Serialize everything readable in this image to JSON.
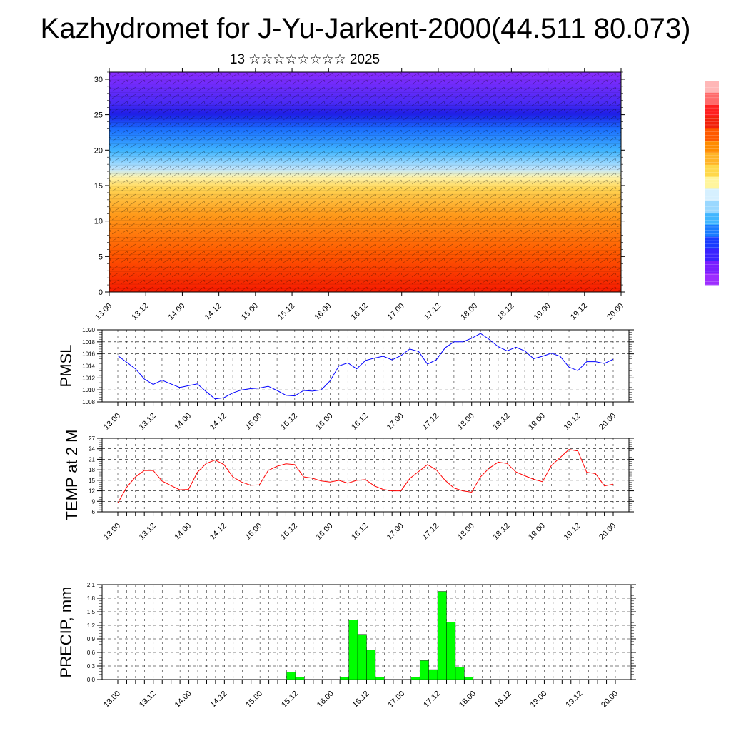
{
  "title": "Kazhydromet for J-Yu-Jarkent-2000(44.511 80.073)",
  "subtitle": "13 ☆☆☆☆☆☆☆☆ 2025",
  "x_tick_labels": [
    "13.00",
    "13.12",
    "14.00",
    "14.12",
    "15.00",
    "15.12",
    "16.00",
    "16.12",
    "17.00",
    "17.12",
    "18.00",
    "18.12",
    "19.00",
    "19.12",
    "20.00"
  ],
  "colors": {
    "pmsl_line": "#0000ff",
    "temp_line": "#ff0000",
    "precip_bar": "#00ff00",
    "colorbar": [
      "#ffb7b7",
      "#ff6b6b",
      "#ff1f1f",
      "#f2210a",
      "#ff5a00",
      "#ff8c00",
      "#ffb428",
      "#ffd84a",
      "#fff59d",
      "#d6f0ff",
      "#9ad8ff",
      "#41b6ff",
      "#1a7cff",
      "#1a3cff",
      "#3a22ff",
      "#7a1fff",
      "#9d2cff"
    ]
  },
  "chart_data": [
    {
      "type": "heatmap",
      "title": "",
      "xlabel": "",
      "ylabel": "",
      "x_tick_labels": [
        "13.00",
        "13.12",
        "14.00",
        "14.12",
        "15.00",
        "15.12",
        "16.00",
        "16.12",
        "17.00",
        "17.12",
        "18.00",
        "18.12",
        "19.00",
        "19.12",
        "20.00"
      ],
      "y_ticks": [
        0,
        5,
        10,
        15,
        20,
        25,
        30
      ],
      "ylim": [
        0,
        31
      ],
      "layers_bottom_to_top": [
        "red",
        "orange",
        "yellow",
        "light-blue",
        "blue",
        "purple"
      ],
      "overlay": "wind barbs"
    },
    {
      "type": "line",
      "ylabel": "PMSL",
      "ylim": [
        1008,
        1020
      ],
      "y_ticks": [
        1008,
        1010,
        1012,
        1014,
        1016,
        1018,
        1020
      ],
      "x_tick_labels": [
        "13.00",
        "13.12",
        "14.00",
        "14.12",
        "15.00",
        "15.12",
        "16.00",
        "16.12",
        "17.00",
        "17.12",
        "18.00",
        "18.12",
        "19.00",
        "19.12",
        "20.00"
      ],
      "x_step_hours": 3,
      "series": [
        {
          "values": [
            1015.7,
            1014.6,
            1013.5,
            1011.8,
            1010.9,
            1011.6,
            1011.0,
            1010.4,
            1010.7,
            1011.0,
            1009.7,
            1008.5,
            1008.7,
            1009.5,
            1010.0,
            1010.2,
            1010.3,
            1010.6,
            1009.9,
            1009.1,
            1009.0,
            1009.9,
            1009.8,
            1010.0,
            1011.5,
            1014.0,
            1014.5,
            1013.5,
            1014.9,
            1015.3,
            1015.6,
            1015.0,
            1015.7,
            1016.8,
            1016.4,
            1014.3,
            1015.0,
            1017.0,
            1018.0,
            1018.0,
            1018.6,
            1019.4,
            1018.4,
            1017.2,
            1016.5,
            1017.1,
            1016.5,
            1015.2,
            1015.6,
            1016.1,
            1015.6,
            1013.8,
            1013.2,
            1014.7,
            1014.7,
            1014.4,
            1015.1
          ]
        }
      ]
    },
    {
      "type": "line",
      "ylabel": "TEMP at 2 M",
      "ylim": [
        6,
        27
      ],
      "y_ticks": [
        6,
        9,
        12,
        15,
        18,
        21,
        24,
        27
      ],
      "x_tick_labels": [
        "13.00",
        "13.12",
        "14.00",
        "14.12",
        "15.00",
        "15.12",
        "16.00",
        "16.12",
        "17.00",
        "17.12",
        "18.00",
        "18.12",
        "19.00",
        "19.12",
        "20.00"
      ],
      "x_step_hours": 3,
      "series": [
        {
          "values": [
            8.5,
            13.0,
            16.0,
            17.8,
            17.8,
            14.8,
            13.5,
            12.3,
            12.4,
            17.3,
            19.8,
            20.8,
            19.5,
            16.0,
            14.5,
            13.6,
            13.7,
            17.8,
            19.0,
            19.7,
            19.5,
            16.0,
            15.6,
            14.8,
            14.5,
            15.0,
            14.2,
            15.0,
            15.2,
            13.4,
            12.4,
            12.0,
            12.0,
            15.5,
            17.5,
            19.5,
            18.0,
            15.0,
            12.8,
            12.0,
            11.6,
            16.0,
            18.5,
            20.2,
            19.8,
            17.4,
            16.3,
            15.3,
            14.6,
            19.2,
            21.5,
            23.8,
            23.4,
            17.3,
            16.9,
            13.4,
            13.9
          ]
        }
      ]
    },
    {
      "type": "bar",
      "ylabel": "PRECIP, mm",
      "ylim": [
        0,
        2.1
      ],
      "y_ticks": [
        0.0,
        0.3,
        0.6,
        0.9,
        1.2,
        1.5,
        1.8,
        2.1
      ],
      "x_tick_labels": [
        "13.00",
        "13.12",
        "14.00",
        "14.12",
        "15.00",
        "15.12",
        "16.00",
        "16.12",
        "17.00",
        "17.12",
        "18.00",
        "18.12",
        "19.00",
        "19.12",
        "20.00"
      ],
      "x_step_hours": 3,
      "values": [
        0,
        0,
        0,
        0,
        0,
        0,
        0,
        0,
        0,
        0,
        0,
        0,
        0,
        0,
        0,
        0,
        0,
        0,
        0,
        0.17,
        0.05,
        0,
        0,
        0,
        0,
        0.05,
        1.32,
        1.0,
        0.65,
        0.05,
        0,
        0,
        0,
        0.05,
        0.42,
        0.22,
        1.95,
        1.27,
        0.28,
        0.05,
        0,
        0,
        0,
        0,
        0,
        0,
        0,
        0,
        0,
        0,
        0,
        0,
        0,
        0,
        0,
        0,
        0
      ]
    }
  ]
}
